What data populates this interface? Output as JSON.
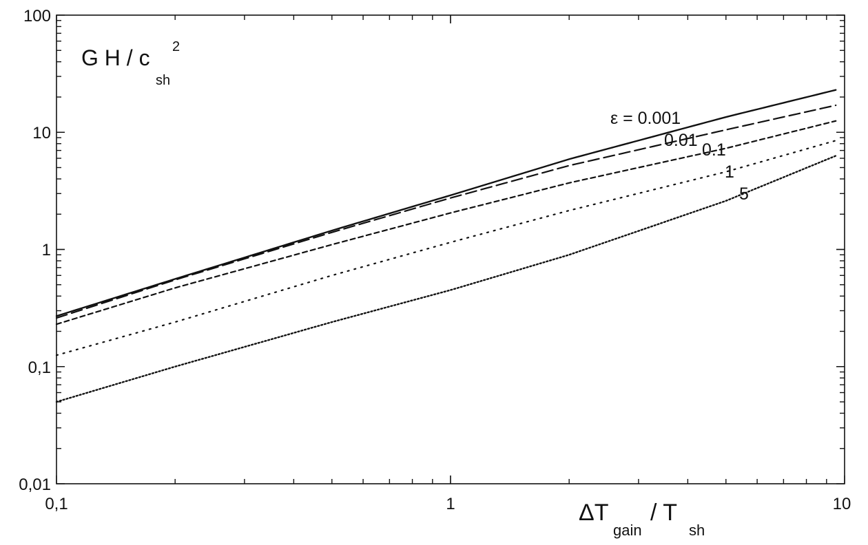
{
  "chart_data": {
    "type": "line",
    "x_scale": "log",
    "y_scale": "log",
    "xlim": [
      0.1,
      10
    ],
    "ylim": [
      0.01,
      100
    ],
    "grid": false,
    "x_ticks": [
      "0,1",
      "1",
      "10"
    ],
    "y_ticks": [
      "0,01",
      "0,1",
      "1",
      "10",
      "100"
    ],
    "ylabel": {
      "main": "G H / c",
      "sub": "sh",
      "sup": "2"
    },
    "xlabel": {
      "delta": "ΔT",
      "sub1": "gain",
      "mid": " / T",
      "sub2": "sh"
    },
    "series": [
      {
        "name": "ε = 0.001",
        "style": "solid",
        "x": [
          0.1,
          0.2,
          0.5,
          1,
          2,
          5,
          9.5
        ],
        "y": [
          0.27,
          0.56,
          1.45,
          2.9,
          5.9,
          13.5,
          23
        ]
      },
      {
        "name": "0.01",
        "style": "dashed-long",
        "x": [
          0.1,
          0.2,
          0.5,
          1,
          2,
          5,
          9.5
        ],
        "y": [
          0.26,
          0.55,
          1.4,
          2.75,
          5.2,
          10.5,
          17
        ]
      },
      {
        "name": "0.1",
        "style": "dashed-short",
        "x": [
          0.1,
          0.2,
          0.5,
          1,
          2,
          5,
          9.5
        ],
        "y": [
          0.23,
          0.47,
          1.1,
          2.05,
          3.7,
          7.3,
          12.5
        ]
      },
      {
        "name": "1",
        "style": "dotted-sparse",
        "x": [
          0.1,
          0.2,
          0.5,
          1,
          2,
          5,
          9.5
        ],
        "y": [
          0.125,
          0.24,
          0.6,
          1.15,
          2.15,
          4.6,
          8.5
        ]
      },
      {
        "name": "5",
        "style": "dotted-dense",
        "x": [
          0.1,
          0.2,
          0.5,
          1,
          2,
          5,
          9.5
        ],
        "y": [
          0.05,
          0.1,
          0.24,
          0.45,
          0.9,
          2.6,
          6.3
        ]
      }
    ]
  }
}
